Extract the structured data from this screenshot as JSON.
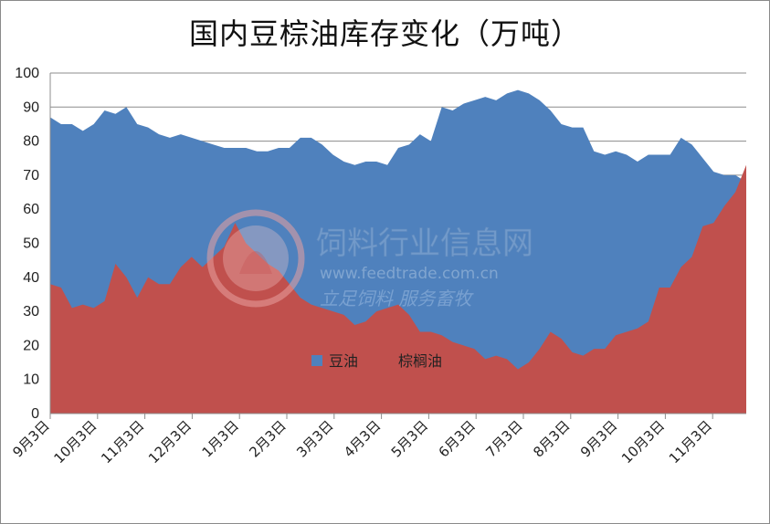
{
  "chart_data": {
    "type": "area",
    "title": "国内豆棕油库存变化（万吨）",
    "ylim": [
      0,
      100
    ],
    "yticks": [
      "0",
      "10",
      "20",
      "30",
      "40",
      "50",
      "60",
      "70",
      "80",
      "90",
      "100"
    ],
    "xtick_labels": [
      "9月3日",
      "10月3日",
      "11月3日",
      "12月3日",
      "1月3日",
      "2月3日",
      "3月3日",
      "4月3日",
      "5月3日",
      "6月3日",
      "7月3日",
      "8月3日",
      "9月3日",
      "10月3日",
      "11月3日"
    ],
    "series": [
      {
        "name": "豆油",
        "color": "#4f81bd",
        "values": [
          87,
          85,
          85,
          83,
          85,
          89,
          88,
          90,
          85,
          84,
          82,
          81,
          82,
          81,
          80,
          79,
          78,
          78,
          78,
          77,
          77,
          78,
          78,
          81,
          81,
          79,
          76,
          74,
          73,
          74,
          74,
          73,
          78,
          79,
          82,
          80,
          90,
          89,
          91,
          92,
          93,
          92,
          94,
          95,
          94,
          92,
          89,
          85,
          84,
          84,
          77,
          76,
          77,
          76,
          74,
          76,
          76,
          76,
          81,
          79,
          75,
          71,
          70,
          70,
          68
        ]
      },
      {
        "name": "棕榈油",
        "color": "#c0504d",
        "values": [
          38,
          37,
          31,
          32,
          31,
          33,
          44,
          40,
          34,
          40,
          38,
          38,
          43,
          46,
          43,
          46,
          49,
          56,
          50,
          47,
          44,
          42,
          38,
          34,
          32,
          31,
          30,
          29,
          26,
          27,
          30,
          31,
          32,
          29,
          24,
          24,
          23,
          21,
          20,
          19,
          16,
          17,
          16,
          13,
          15,
          19,
          24,
          22,
          18,
          17,
          19,
          19,
          23,
          24,
          25,
          27,
          37,
          37,
          43,
          46,
          55,
          56,
          61,
          65,
          73
        ]
      }
    ]
  },
  "watermark": {
    "main": "饲料行业信息网",
    "url": "www.feedtrade.com.cn",
    "slogan": "立足饲料    服务畜牧"
  }
}
